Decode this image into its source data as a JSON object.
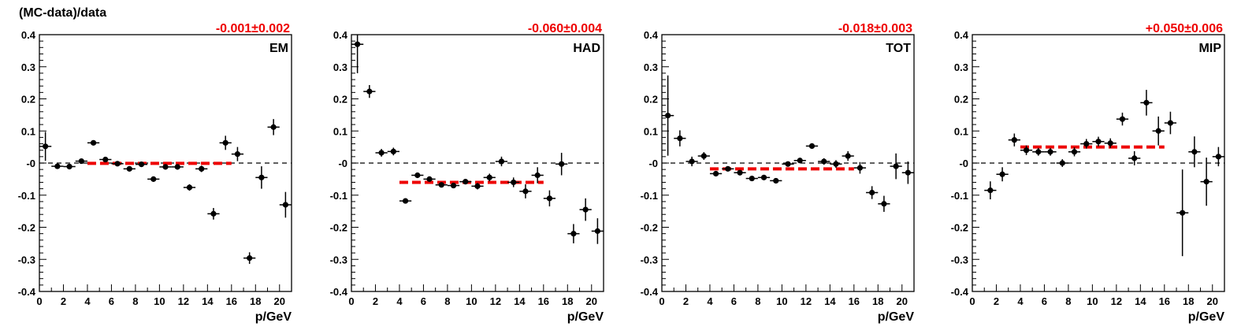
{
  "ylabel": "(MC-data)/data",
  "chart_data": [
    {
      "type": "scatter",
      "panel": "EM",
      "fit_label": "-0.001±0.002",
      "fit_value": -0.001,
      "fit_range": [
        4,
        16
      ],
      "xlabel": "p/GeV",
      "xlim": [
        0,
        21
      ],
      "ylim": [
        -0.4,
        0.4
      ],
      "xticks": [
        "0",
        "2",
        "4",
        "6",
        "8",
        "10",
        "12",
        "14",
        "16",
        "18",
        "20"
      ],
      "yticks": [
        "-0.4",
        "-0.3",
        "-0.2",
        "-0.1",
        "-0",
        "0.1",
        "0.2",
        "0.3",
        "0.4"
      ],
      "points": [
        {
          "x": 0.5,
          "y": 0.052,
          "err": 0.045
        },
        {
          "x": 1.5,
          "y": -0.01,
          "err": 0.008
        },
        {
          "x": 2.5,
          "y": -0.011,
          "err": 0.008
        },
        {
          "x": 3.5,
          "y": 0.006,
          "err": 0.006
        },
        {
          "x": 4.5,
          "y": 0.063,
          "err": 0.005
        },
        {
          "x": 5.5,
          "y": 0.011,
          "err": 0.005
        },
        {
          "x": 6.5,
          "y": -0.002,
          "err": 0.005
        },
        {
          "x": 7.5,
          "y": -0.018,
          "err": 0.008
        },
        {
          "x": 8.5,
          "y": -0.004,
          "err": 0.006
        },
        {
          "x": 9.5,
          "y": -0.05,
          "err": 0.005
        },
        {
          "x": 10.5,
          "y": -0.012,
          "err": 0.006
        },
        {
          "x": 11.5,
          "y": -0.012,
          "err": 0.008
        },
        {
          "x": 12.5,
          "y": -0.076,
          "err": 0.01
        },
        {
          "x": 13.5,
          "y": -0.018,
          "err": 0.01
        },
        {
          "x": 14.5,
          "y": -0.158,
          "err": 0.018
        },
        {
          "x": 15.5,
          "y": 0.063,
          "err": 0.022
        },
        {
          "x": 16.5,
          "y": 0.028,
          "err": 0.022
        },
        {
          "x": 17.5,
          "y": -0.296,
          "err": 0.018
        },
        {
          "x": 18.5,
          "y": -0.045,
          "err": 0.035
        },
        {
          "x": 19.5,
          "y": 0.112,
          "err": 0.025
        },
        {
          "x": 20.5,
          "y": -0.13,
          "err": 0.04
        }
      ]
    },
    {
      "type": "scatter",
      "panel": "HAD",
      "fit_label": "-0.060±0.004",
      "fit_value": -0.06,
      "fit_range": [
        4,
        16
      ],
      "xlabel": "p/GeV",
      "xlim": [
        0,
        21
      ],
      "ylim": [
        -0.4,
        0.4
      ],
      "xticks": [
        "0",
        "2",
        "4",
        "6",
        "8",
        "10",
        "12",
        "14",
        "16",
        "18",
        "20"
      ],
      "yticks": [
        "-0.4",
        "-0.3",
        "-0.2",
        "-0.1",
        "-0",
        "0.1",
        "0.2",
        "0.3",
        "0.4"
      ],
      "points": [
        {
          "x": 0.5,
          "y": 0.37,
          "err": 0.09
        },
        {
          "x": 1.5,
          "y": 0.223,
          "err": 0.02
        },
        {
          "x": 2.5,
          "y": 0.032,
          "err": 0.012
        },
        {
          "x": 3.5,
          "y": 0.036,
          "err": 0.012
        },
        {
          "x": 4.5,
          "y": -0.118,
          "err": 0.006
        },
        {
          "x": 5.5,
          "y": -0.038,
          "err": 0.006
        },
        {
          "x": 6.5,
          "y": -0.05,
          "err": 0.006
        },
        {
          "x": 7.5,
          "y": -0.068,
          "err": 0.008
        },
        {
          "x": 8.5,
          "y": -0.07,
          "err": 0.008
        },
        {
          "x": 9.5,
          "y": -0.058,
          "err": 0.008
        },
        {
          "x": 10.5,
          "y": -0.072,
          "err": 0.01
        },
        {
          "x": 11.5,
          "y": -0.045,
          "err": 0.012
        },
        {
          "x": 12.5,
          "y": 0.005,
          "err": 0.015
        },
        {
          "x": 13.5,
          "y": -0.06,
          "err": 0.015
        },
        {
          "x": 14.5,
          "y": -0.088,
          "err": 0.022
        },
        {
          "x": 15.5,
          "y": -0.038,
          "err": 0.025
        },
        {
          "x": 16.5,
          "y": -0.11,
          "err": 0.025
        },
        {
          "x": 17.5,
          "y": -0.003,
          "err": 0.035
        },
        {
          "x": 18.5,
          "y": -0.22,
          "err": 0.03
        },
        {
          "x": 19.5,
          "y": -0.145,
          "err": 0.035
        },
        {
          "x": 20.5,
          "y": -0.212,
          "err": 0.04
        }
      ]
    },
    {
      "type": "scatter",
      "panel": "TOT",
      "fit_label": "-0.018±0.003",
      "fit_value": -0.018,
      "fit_range": [
        4,
        16
      ],
      "xlabel": "p/GeV",
      "xlim": [
        0,
        21
      ],
      "ylim": [
        -0.4,
        0.4
      ],
      "xticks": [
        "0",
        "2",
        "4",
        "6",
        "8",
        "10",
        "12",
        "14",
        "16",
        "18",
        "20"
      ],
      "yticks": [
        "-0.4",
        "-0.3",
        "-0.2",
        "-0.1",
        "-0",
        "0.1",
        "0.2",
        "0.3",
        "0.4"
      ],
      "points": [
        {
          "x": 0.5,
          "y": 0.148,
          "err": 0.125
        },
        {
          "x": 1.5,
          "y": 0.077,
          "err": 0.025
        },
        {
          "x": 2.5,
          "y": 0.005,
          "err": 0.015
        },
        {
          "x": 3.5,
          "y": 0.022,
          "err": 0.012
        },
        {
          "x": 4.5,
          "y": -0.033,
          "err": 0.008
        },
        {
          "x": 5.5,
          "y": -0.018,
          "err": 0.005
        },
        {
          "x": 6.5,
          "y": -0.03,
          "err": 0.005
        },
        {
          "x": 7.5,
          "y": -0.048,
          "err": 0.005
        },
        {
          "x": 8.5,
          "y": -0.045,
          "err": 0.005
        },
        {
          "x": 9.5,
          "y": -0.055,
          "err": 0.005
        },
        {
          "x": 10.5,
          "y": -0.003,
          "err": 0.005
        },
        {
          "x": 11.5,
          "y": 0.008,
          "err": 0.006
        },
        {
          "x": 12.5,
          "y": 0.053,
          "err": 0.006
        },
        {
          "x": 13.5,
          "y": 0.005,
          "err": 0.01
        },
        {
          "x": 14.5,
          "y": -0.003,
          "err": 0.012
        },
        {
          "x": 15.5,
          "y": 0.022,
          "err": 0.015
        },
        {
          "x": 16.5,
          "y": -0.015,
          "err": 0.018
        },
        {
          "x": 17.5,
          "y": -0.092,
          "err": 0.02
        },
        {
          "x": 18.5,
          "y": -0.127,
          "err": 0.025
        },
        {
          "x": 19.5,
          "y": -0.01,
          "err": 0.04
        },
        {
          "x": 20.5,
          "y": -0.03,
          "err": 0.035
        }
      ]
    },
    {
      "type": "scatter",
      "panel": "MIP",
      "fit_label": "+0.050±0.006",
      "fit_value": 0.05,
      "fit_range": [
        4,
        16
      ],
      "xlabel": "p/GeV",
      "xlim": [
        0,
        21
      ],
      "ylim": [
        -0.4,
        0.4
      ],
      "xticks": [
        "0",
        "2",
        "4",
        "6",
        "8",
        "10",
        "12",
        "14",
        "16",
        "18",
        "20"
      ],
      "yticks": [
        "-0.4",
        "-0.3",
        "-0.2",
        "-0.1",
        "-0",
        "0.1",
        "0.2",
        "0.3",
        "0.4"
      ],
      "points": [
        {
          "x": 1.5,
          "y": -0.085,
          "err": 0.028
        },
        {
          "x": 2.5,
          "y": -0.035,
          "err": 0.022
        },
        {
          "x": 3.5,
          "y": 0.072,
          "err": 0.02
        },
        {
          "x": 4.5,
          "y": 0.04,
          "err": 0.015
        },
        {
          "x": 5.5,
          "y": 0.035,
          "err": 0.012
        },
        {
          "x": 6.5,
          "y": 0.035,
          "err": 0.012
        },
        {
          "x": 7.5,
          "y": 0.0,
          "err": 0.012
        },
        {
          "x": 8.5,
          "y": 0.035,
          "err": 0.014
        },
        {
          "x": 9.5,
          "y": 0.06,
          "err": 0.015
        },
        {
          "x": 10.5,
          "y": 0.067,
          "err": 0.015
        },
        {
          "x": 11.5,
          "y": 0.062,
          "err": 0.015
        },
        {
          "x": 12.5,
          "y": 0.137,
          "err": 0.02
        },
        {
          "x": 13.5,
          "y": 0.015,
          "err": 0.022
        },
        {
          "x": 14.5,
          "y": 0.188,
          "err": 0.04
        },
        {
          "x": 15.5,
          "y": 0.1,
          "err": 0.045
        },
        {
          "x": 16.5,
          "y": 0.125,
          "err": 0.035
        },
        {
          "x": 17.5,
          "y": -0.155,
          "err": 0.135
        },
        {
          "x": 18.5,
          "y": 0.035,
          "err": 0.048
        },
        {
          "x": 19.5,
          "y": -0.058,
          "err": 0.075
        },
        {
          "x": 20.5,
          "y": 0.02,
          "err": 0.03
        }
      ]
    }
  ]
}
